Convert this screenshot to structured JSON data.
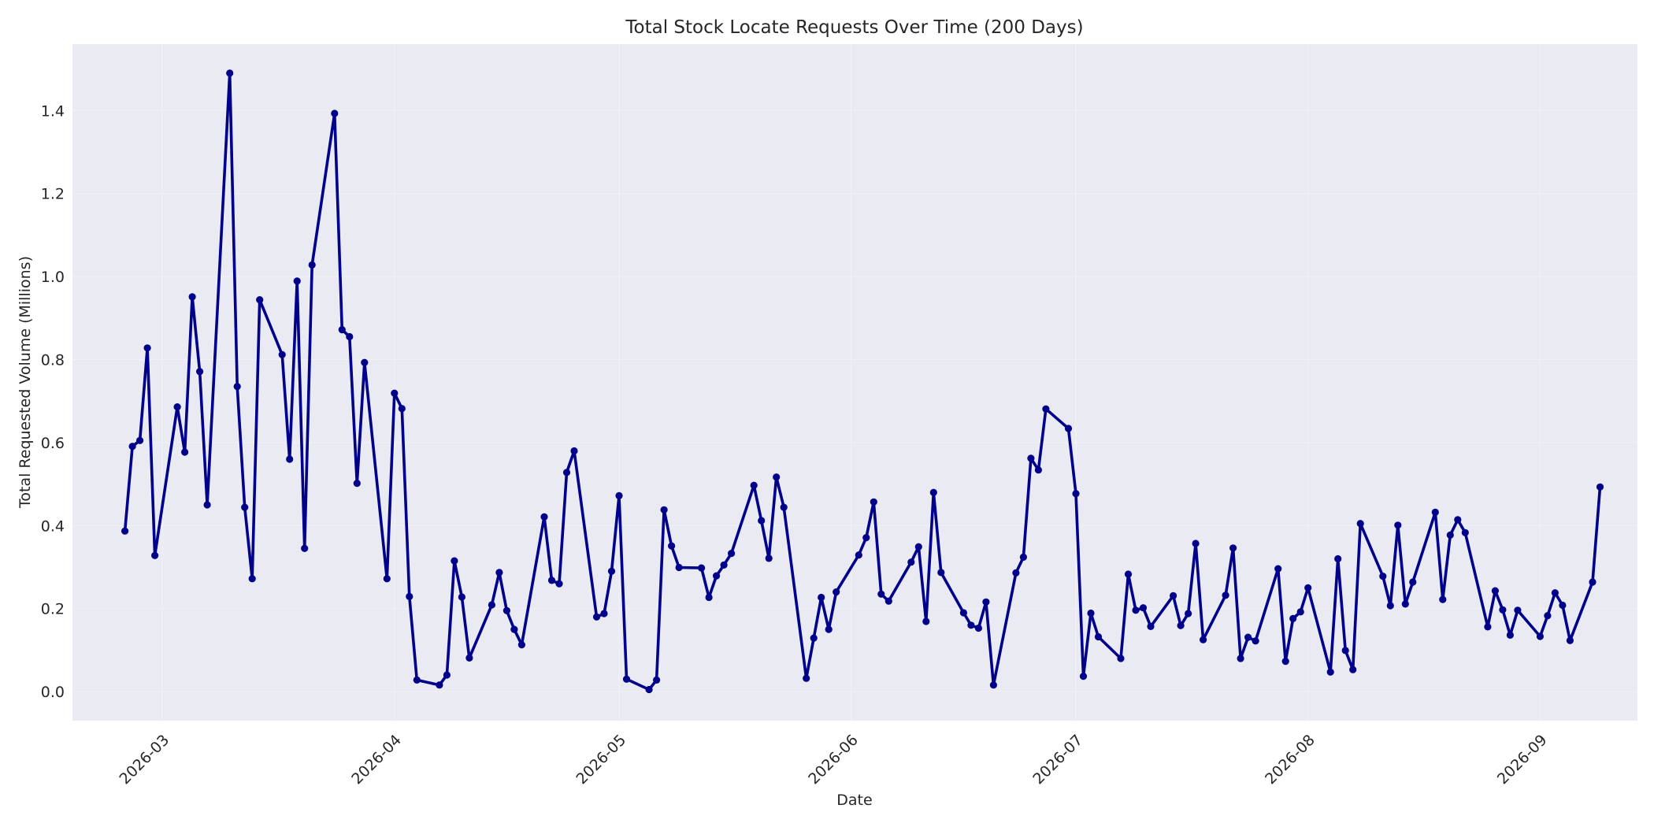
{
  "chart_data": {
    "type": "line",
    "title": "Total Stock Locate Requests Over Time (200 Days)",
    "xlabel": "Date",
    "ylabel": "Total Requested Volume (Millions)",
    "xlim": [
      "2026-02-17",
      "2026-09-14"
    ],
    "ylim": [
      -0.07,
      1.56
    ],
    "x_ticks": [
      "2026-03",
      "2026-04",
      "2026-05",
      "2026-06",
      "2026-07",
      "2026-08",
      "2026-09"
    ],
    "y_ticks": [
      "0.0",
      "0.2",
      "0.4",
      "0.6",
      "0.8",
      "1.0",
      "1.2",
      "1.4"
    ],
    "y_tick_values": [
      0,
      0.2,
      0.4,
      0.6,
      0.8,
      1.0,
      1.2,
      1.4
    ],
    "grid": true,
    "background_color": "#eaeaf2",
    "line_color": "#00008b",
    "series": [
      {
        "x": [
          "2026-02-24",
          "2026-02-25",
          "2026-02-26",
          "2026-02-27",
          "2026-02-28",
          "2026-03-03",
          "2026-03-04",
          "2026-03-05",
          "2026-03-06",
          "2026-03-07",
          "2026-03-10",
          "2026-03-11",
          "2026-03-12",
          "2026-03-13",
          "2026-03-14",
          "2026-03-17",
          "2026-03-18",
          "2026-03-19",
          "2026-03-20",
          "2026-03-21",
          "2026-03-24",
          "2026-03-25",
          "2026-03-26",
          "2026-03-27",
          "2026-03-28",
          "2026-03-31",
          "2026-04-01",
          "2026-04-02",
          "2026-04-03",
          "2026-04-04",
          "2026-04-07",
          "2026-04-08",
          "2026-04-09",
          "2026-04-10",
          "2026-04-11",
          "2026-04-14",
          "2026-04-15",
          "2026-04-16",
          "2026-04-17",
          "2026-04-18",
          "2026-04-21",
          "2026-04-22",
          "2026-04-23",
          "2026-04-24",
          "2026-04-25",
          "2026-04-28",
          "2026-04-29",
          "2026-04-30",
          "2026-05-01",
          "2026-05-02",
          "2026-05-05",
          "2026-05-06",
          "2026-05-07",
          "2026-05-08",
          "2026-05-09",
          "2026-05-12",
          "2026-05-13",
          "2026-05-14",
          "2026-05-15",
          "2026-05-16",
          "2026-05-19",
          "2026-05-20",
          "2026-05-21",
          "2026-05-22",
          "2026-05-23",
          "2026-05-26",
          "2026-05-27",
          "2026-05-28",
          "2026-05-29",
          "2026-05-30",
          "2026-06-02",
          "2026-06-03",
          "2026-06-04",
          "2026-06-05",
          "2026-06-06",
          "2026-06-09",
          "2026-06-10",
          "2026-06-11",
          "2026-06-12",
          "2026-06-13",
          "2026-06-16",
          "2026-06-17",
          "2026-06-18",
          "2026-06-19",
          "2026-06-20",
          "2026-06-23",
          "2026-06-24",
          "2026-06-25",
          "2026-06-26",
          "2026-06-27",
          "2026-06-30",
          "2026-07-01",
          "2026-07-02",
          "2026-07-03",
          "2026-07-04",
          "2026-07-07",
          "2026-07-08",
          "2026-07-09",
          "2026-07-10",
          "2026-07-11",
          "2026-07-14",
          "2026-07-15",
          "2026-07-16",
          "2026-07-17",
          "2026-07-18",
          "2026-07-21",
          "2026-07-22",
          "2026-07-23",
          "2026-07-24",
          "2026-07-25",
          "2026-07-28",
          "2026-07-29",
          "2026-07-30",
          "2026-07-31",
          "2026-08-01",
          "2026-08-04",
          "2026-08-05",
          "2026-08-06",
          "2026-08-07",
          "2026-08-08",
          "2026-08-11",
          "2026-08-12",
          "2026-08-13",
          "2026-08-14",
          "2026-08-15",
          "2026-08-18",
          "2026-08-19",
          "2026-08-20",
          "2026-08-21",
          "2026-08-22",
          "2026-08-25",
          "2026-08-26",
          "2026-08-27",
          "2026-08-28",
          "2026-08-29",
          "2026-09-01",
          "2026-09-02",
          "2026-09-03",
          "2026-09-04",
          "2026-09-05",
          "2026-09-08",
          "2026-09-09"
        ],
        "y": [
          0.387,
          0.591,
          0.605,
          0.828,
          0.328,
          0.686,
          0.577,
          0.951,
          0.771,
          0.45,
          1.49,
          0.735,
          0.444,
          0.272,
          0.944,
          0.812,
          0.56,
          0.989,
          0.345,
          1.028,
          1.393,
          0.872,
          0.855,
          0.502,
          0.793,
          0.272,
          0.719,
          0.682,
          0.229,
          0.028,
          0.016,
          0.04,
          0.315,
          0.228,
          0.081,
          0.209,
          0.287,
          0.195,
          0.15,
          0.113,
          0.421,
          0.268,
          0.26,
          0.528,
          0.58,
          0.18,
          0.188,
          0.29,
          0.472,
          0.03,
          0.005,
          0.028,
          0.438,
          0.351,
          0.299,
          0.298,
          0.227,
          0.279,
          0.305,
          0.333,
          0.497,
          0.412,
          0.321,
          0.517,
          0.444,
          0.032,
          0.129,
          0.227,
          0.15,
          0.24,
          0.329,
          0.371,
          0.457,
          0.235,
          0.218,
          0.312,
          0.349,
          0.169,
          0.48,
          0.287,
          0.19,
          0.16,
          0.153,
          0.216,
          0.016,
          0.286,
          0.324,
          0.562,
          0.534,
          0.681,
          0.634,
          0.477,
          0.037,
          0.189,
          0.132,
          0.08,
          0.283,
          0.196,
          0.202,
          0.157,
          0.231,
          0.159,
          0.188,
          0.357,
          0.125,
          0.232,
          0.346,
          0.08,
          0.131,
          0.122,
          0.296,
          0.073,
          0.176,
          0.192,
          0.25,
          0.047,
          0.32,
          0.099,
          0.053,
          0.405,
          0.278,
          0.207,
          0.401,
          0.211,
          0.264,
          0.432,
          0.222,
          0.377,
          0.414,
          0.383,
          0.156,
          0.243,
          0.197,
          0.136,
          0.196,
          0.133,
          0.183,
          0.238,
          0.208,
          0.123,
          0.264,
          0.493
        ]
      }
    ]
  }
}
